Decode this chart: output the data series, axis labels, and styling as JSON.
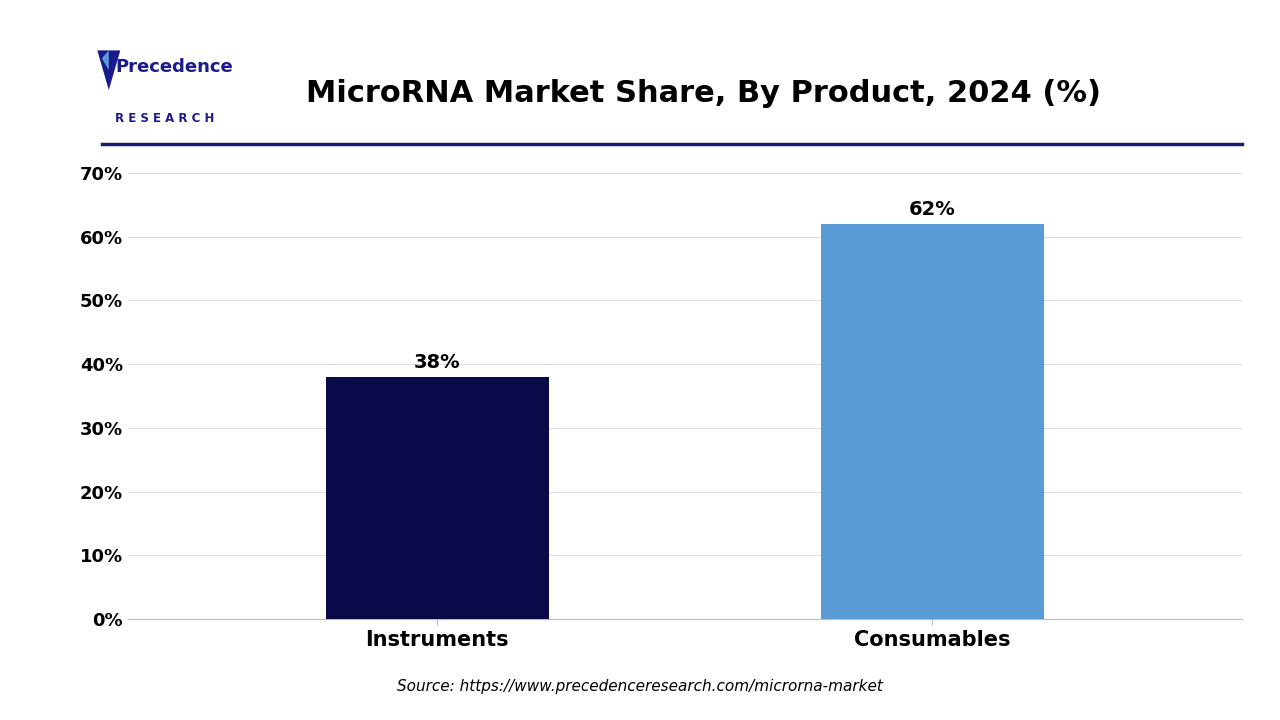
{
  "title": "MicroRNA Market Share, By Product, 2024 (%)",
  "categories": [
    "Instruments",
    "Consumables"
  ],
  "values": [
    38,
    62
  ],
  "bar_colors": [
    "#0a0a4a",
    "#5b9bd5"
  ],
  "bar_labels": [
    "38%",
    "62%"
  ],
  "ylim": [
    0,
    70
  ],
  "yticks": [
    0,
    10,
    20,
    30,
    40,
    50,
    60,
    70
  ],
  "ytick_labels": [
    "0%",
    "10%",
    "20%",
    "30%",
    "40%",
    "50%",
    "60%",
    "70%"
  ],
  "source_text": "Source: https://www.precedenceresearch.com/microrna-market",
  "title_fontsize": 22,
  "label_fontsize": 15,
  "tick_fontsize": 13,
  "bar_label_fontsize": 14,
  "source_fontsize": 11,
  "background_color": "#ffffff",
  "grid_color": "#dddddd",
  "separator_line_color": "#1a1a6e",
  "bar_width": 0.18,
  "logo_line1": "Precedence",
  "logo_line2": "R E S E A R C H",
  "logo_color": "#1a1a8c"
}
